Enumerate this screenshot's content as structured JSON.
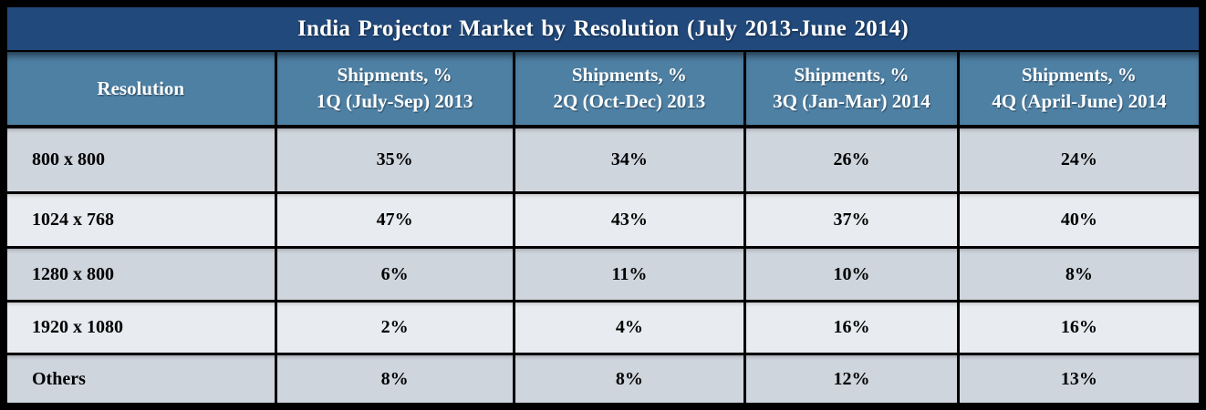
{
  "chart_data": {
    "type": "table",
    "title": "India Projector Market by Resolution (July 2013-June 2014)",
    "header": {
      "resolution": "Resolution",
      "q1": {
        "line1": "Shipments, %",
        "line2": "1Q (July-Sep) 2013"
      },
      "q2": {
        "line1": "Shipments, %",
        "line2": "2Q (Oct-Dec) 2013"
      },
      "q3": {
        "line1": "Shipments, %",
        "line2": "3Q (Jan-Mar) 2014"
      },
      "q4": {
        "line1": "Shipments, %",
        "line2": "4Q (April-June) 2014"
      }
    },
    "rows": [
      {
        "resolution": "800 x 800",
        "values": [
          "35%",
          "34%",
          "26%",
          "24%"
        ]
      },
      {
        "resolution": "1024 x 768",
        "values": [
          "47%",
          "43%",
          "37%",
          "40%"
        ]
      },
      {
        "resolution": "1280 x 800",
        "values": [
          "6%",
          "11%",
          "10%",
          "8%"
        ]
      },
      {
        "resolution": "1920 x 1080",
        "values": [
          "2%",
          "4%",
          "16%",
          "16%"
        ]
      },
      {
        "resolution": "Others",
        "values": [
          "8%",
          "8%",
          "12%",
          "13%"
        ]
      }
    ]
  },
  "colors": {
    "title_bg": "#21497B",
    "header_bg": "#4E80A4",
    "row_dark": "#CFD5DD",
    "row_light": "#E8EBEF",
    "frame_border": "#000000",
    "title_text": "#FFFFFF",
    "header_text": "#FFFFFF",
    "body_text": "#000000"
  }
}
